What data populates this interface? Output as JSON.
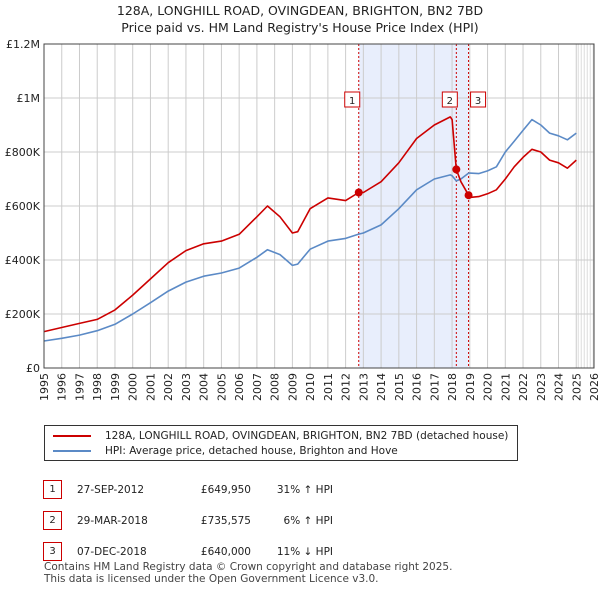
{
  "header": {
    "title": "128A, LONGHILL ROAD, OVINGDEAN, BRIGHTON, BN2 7BD",
    "subtitle": "Price paid vs. HM Land Registry's House Price Index (HPI)"
  },
  "colors": {
    "property": "#cc0000",
    "hpi": "#5b8ac6",
    "highlight": "#e8eefc",
    "future": "#dddddd",
    "grid": "#cccccc"
  },
  "chart_data": {
    "type": "line",
    "title": "128A, LONGHILL ROAD, OVINGDEAN, BRIGHTON, BN2 7BD",
    "subtitle": "Price paid vs. HM Land Registry's House Price Index (HPI)",
    "xlabel": "",
    "ylabel": "",
    "xlim": [
      1995,
      2026
    ],
    "ylim": [
      0,
      1200000
    ],
    "grid": true,
    "x_ticks": [
      "1995",
      "1996",
      "1997",
      "1998",
      "1999",
      "2000",
      "2001",
      "2002",
      "2003",
      "2004",
      "2005",
      "2006",
      "2007",
      "2008",
      "2009",
      "2010",
      "2011",
      "2012",
      "2013",
      "2014",
      "2015",
      "2016",
      "2017",
      "2018",
      "2019",
      "2020",
      "2021",
      "2022",
      "2023",
      "2024",
      "2025",
      "2026"
    ],
    "y_ticks": [
      {
        "value": 0,
        "label": "£0"
      },
      {
        "value": 200000,
        "label": "£200K"
      },
      {
        "value": 400000,
        "label": "£400K"
      },
      {
        "value": 600000,
        "label": "£600K"
      },
      {
        "value": 800000,
        "label": "£800K"
      },
      {
        "value": 1000000,
        "label": "£1M"
      },
      {
        "value": 1200000,
        "label": "£1.2M"
      }
    ],
    "highlight_span": [
      2012.74,
      2018.93
    ],
    "future_from": 2025.0,
    "series": [
      {
        "name": "128A, LONGHILL ROAD, OVINGDEAN, BRIGHTON, BN2 7BD (detached house)",
        "x": [
          1995.0,
          1996.0,
          1997.0,
          1998.0,
          1999.0,
          2000.0,
          2001.0,
          2002.0,
          2003.0,
          2004.0,
          2005.0,
          2006.0,
          2007.0,
          2007.6,
          2008.3,
          2009.0,
          2009.3,
          2010.0,
          2011.0,
          2012.0,
          2012.74,
          2013.0,
          2014.0,
          2015.0,
          2016.0,
          2017.0,
          2017.9,
          2018.0,
          2018.24,
          2018.5,
          2018.93,
          2019.0,
          2019.5,
          2020.0,
          2020.5,
          2021.0,
          2021.5,
          2022.0,
          2022.5,
          2023.0,
          2023.5,
          2024.0,
          2024.5,
          2025.0
        ],
        "values": [
          135000,
          150000,
          165000,
          180000,
          215000,
          270000,
          330000,
          390000,
          435000,
          460000,
          470000,
          495000,
          560000,
          600000,
          560000,
          500000,
          505000,
          590000,
          630000,
          620000,
          649950,
          650000,
          690000,
          760000,
          850000,
          900000,
          930000,
          920000,
          735575,
          690000,
          640000,
          632000,
          635000,
          645000,
          660000,
          700000,
          745000,
          780000,
          810000,
          800000,
          770000,
          760000,
          740000,
          770000
        ]
      },
      {
        "name": "HPI: Average price, detached house, Brighton and Hove",
        "x": [
          1995.0,
          1996.0,
          1997.0,
          1998.0,
          1999.0,
          2000.0,
          2001.0,
          2002.0,
          2003.0,
          2004.0,
          2005.0,
          2006.0,
          2007.0,
          2007.6,
          2008.3,
          2009.0,
          2009.3,
          2010.0,
          2011.0,
          2012.0,
          2012.74,
          2013.0,
          2014.0,
          2015.0,
          2016.0,
          2017.0,
          2017.9,
          2018.0,
          2018.24,
          2018.5,
          2018.93,
          2019.0,
          2019.5,
          2020.0,
          2020.5,
          2021.0,
          2021.5,
          2022.0,
          2022.5,
          2023.0,
          2023.5,
          2024.0,
          2024.5,
          2025.0
        ],
        "values": [
          100000,
          110000,
          122000,
          138000,
          162000,
          200000,
          242000,
          285000,
          318000,
          340000,
          352000,
          370000,
          410000,
          438000,
          420000,
          380000,
          385000,
          440000,
          470000,
          480000,
          496000,
          500000,
          530000,
          590000,
          660000,
          700000,
          715000,
          712000,
          693000,
          700000,
          722000,
          722000,
          720000,
          730000,
          745000,
          800000,
          840000,
          880000,
          920000,
          900000,
          870000,
          860000,
          845000,
          870000
        ]
      }
    ],
    "sales": [
      {
        "label": "1",
        "x": 2012.74,
        "value": 649950
      },
      {
        "label": "2",
        "x": 2018.24,
        "value": 735575
      },
      {
        "label": "3",
        "x": 2018.93,
        "value": 640000
      }
    ]
  },
  "legend": {
    "property_label": "128A, LONGHILL ROAD, OVINGDEAN, BRIGHTON, BN2 7BD (detached house)",
    "hpi_label": "HPI: Average price, detached house, Brighton and Hove"
  },
  "sales_table": [
    {
      "num": "1",
      "date": "27-SEP-2012",
      "price": "£649,950",
      "hpi": "31% ↑ HPI"
    },
    {
      "num": "2",
      "date": "29-MAR-2018",
      "price": "£735,575",
      "hpi": "6% ↑ HPI"
    },
    {
      "num": "3",
      "date": "07-DEC-2018",
      "price": "£640,000",
      "hpi": "11% ↓ HPI"
    }
  ],
  "footer": {
    "line1": "Contains HM Land Registry data © Crown copyright and database right 2025.",
    "line2": "This data is licensed under the Open Government Licence v3.0."
  }
}
